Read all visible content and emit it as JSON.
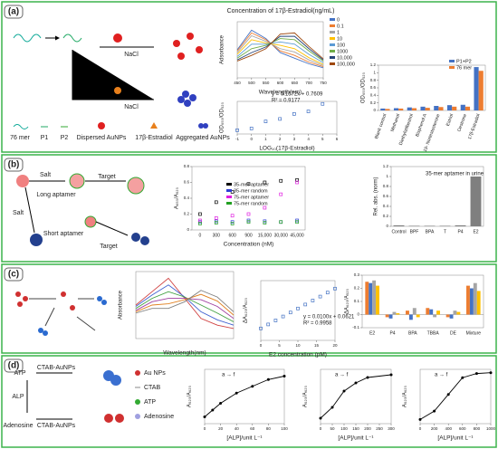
{
  "panels": [
    {
      "label": "(a)",
      "texts": [
        "NaCl",
        "NaCl",
        "76 mer",
        "P1",
        "P2",
        "Dispersed AuNPs",
        "17β-Estradiol",
        "Aggregated AuNPs"
      ]
    },
    {
      "label": "(b)",
      "texts": [
        "Salt",
        "Long aptamer",
        "Target",
        "Salt",
        "Short aptamer",
        "Target"
      ]
    },
    {
      "label": "(c)",
      "texts": []
    },
    {
      "label": "(d)",
      "texts": [
        "ATP",
        "ALP",
        "Adenosine",
        "CTAB-AuNPs",
        "CTAB-AuNPs",
        "Au NPs",
        "CTAB",
        "ATP",
        "Adenosine"
      ]
    }
  ],
  "chart_data": [
    {
      "type": "line",
      "title": "Concentration of 17β-Estradiol(ng/mL)",
      "xlabel": "Wavelength(nm)",
      "ylabel": "Adsorbance",
      "x": [
        450,
        500,
        550,
        600,
        650,
        700,
        750
      ],
      "xlim": [
        450,
        750
      ],
      "ylim": [
        0,
        1
      ],
      "xticks": [
        450,
        500,
        550,
        600,
        650,
        700,
        750
      ],
      "series": [
        {
          "name": "0",
          "color": "#4472c4",
          "values": [
            0.5,
            0.85,
            0.7,
            0.45,
            0.35,
            0.25,
            0.18
          ]
        },
        {
          "name": "0.1",
          "color": "#ed7d31",
          "values": [
            0.48,
            0.8,
            0.68,
            0.48,
            0.4,
            0.28,
            0.2
          ]
        },
        {
          "name": "1",
          "color": "#a5a5a5",
          "values": [
            0.45,
            0.75,
            0.65,
            0.52,
            0.46,
            0.32,
            0.22
          ]
        },
        {
          "name": "10",
          "color": "#ffc000",
          "values": [
            0.42,
            0.68,
            0.62,
            0.58,
            0.52,
            0.36,
            0.24
          ]
        },
        {
          "name": "100",
          "color": "#5b9bd5",
          "values": [
            0.38,
            0.6,
            0.6,
            0.64,
            0.6,
            0.42,
            0.27
          ]
        },
        {
          "name": "1000",
          "color": "#70ad47",
          "values": [
            0.35,
            0.52,
            0.58,
            0.7,
            0.68,
            0.48,
            0.3
          ]
        },
        {
          "name": "10,000",
          "color": "#264478",
          "values": [
            0.32,
            0.45,
            0.55,
            0.74,
            0.74,
            0.52,
            0.32
          ]
        },
        {
          "name": "100,000",
          "color": "#9e480e",
          "values": [
            0.3,
            0.4,
            0.52,
            0.78,
            0.8,
            0.56,
            0.34
          ]
        }
      ]
    },
    {
      "type": "scatter",
      "xlabel": "LOG₁₀(17β-Estradiol)",
      "ylabel": "OD₆₅₀/OD₅₂₀",
      "annotations": [
        "y = 0.1672x + 0.7609",
        "R² = 0.9177"
      ],
      "x": [
        -1,
        0,
        1,
        2,
        3,
        4,
        5
      ],
      "xlim": [
        -1,
        6
      ],
      "ylim": [
        0.5,
        1.8
      ],
      "xticks": [
        -1,
        0,
        1,
        2,
        3,
        4,
        5,
        6
      ],
      "series": [
        {
          "color": "#4472c4",
          "values": [
            0.65,
            0.72,
            1.0,
            1.1,
            1.3,
            1.4,
            1.7
          ]
        }
      ]
    },
    {
      "type": "bar",
      "ylabel": "OD₆₅₀/OD₅₂₀",
      "categories": [
        "Blank control",
        "Methanol",
        "Diethylstilbestrol",
        "Bisphenol A",
        "19- Nortestosterone",
        "Estriol",
        "Oestrone",
        "17β-Estradiol"
      ],
      "ylim": [
        0,
        1.2
      ],
      "yticks": [
        0,
        0.2,
        0.4,
        0.6,
        0.8,
        1,
        1.2
      ],
      "series": [
        {
          "name": "P1+P2",
          "color": "#4472c4",
          "values": [
            0.05,
            0.06,
            0.08,
            0.1,
            0.12,
            0.14,
            0.15,
            1.15
          ]
        },
        {
          "name": "76 mer",
          "color": "#ed7d31",
          "values": [
            0.04,
            0.05,
            0.06,
            0.07,
            0.09,
            0.1,
            0.1,
            1.05
          ]
        }
      ]
    },
    {
      "type": "scatter",
      "xlabel": "Concentration (nM)",
      "ylabel": "A₆₅₀/A₅₂₀",
      "categories": [
        "0",
        "300",
        "600",
        "900",
        "15,000",
        "30,000",
        "45,000"
      ],
      "ylim": [
        0,
        0.8
      ],
      "yticks": [
        0,
        0.2,
        0.4,
        0.6,
        0.8
      ],
      "series": [
        {
          "name": "35-mer aptamer",
          "color": "#000000",
          "values": [
            0.2,
            0.35,
            0.48,
            0.58,
            0.6,
            0.62,
            0.63
          ]
        },
        {
          "name": "35-mer random",
          "color": "#2e3fd6",
          "values": [
            0.1,
            0.11,
            0.1,
            0.12,
            0.11,
            0.1,
            0.12
          ]
        },
        {
          "name": "75-mer aptamer",
          "color": "#e020e0",
          "values": [
            0.12,
            0.15,
            0.18,
            0.2,
            0.28,
            0.45,
            0.6
          ]
        },
        {
          "name": "75-mer random",
          "color": "#22a022",
          "values": [
            0.08,
            0.09,
            0.08,
            0.1,
            0.09,
            0.1,
            0.1
          ]
        }
      ]
    },
    {
      "type": "bar",
      "ylabel": "Rel. abs. (norm)",
      "annotations": [
        "35-mer aptamer in urine"
      ],
      "categories": [
        "Control",
        "BPF",
        "BPA",
        "T",
        "P4",
        "E2"
      ],
      "ylim": [
        0,
        1.2
      ],
      "yticks": [
        0,
        0.2,
        0.4,
        0.6,
        0.8,
        1,
        1.2
      ],
      "series": [
        {
          "color": "#7f7f7f",
          "values": [
            0.02,
            0.01,
            0.01,
            0.01,
            0.02,
            1.0
          ]
        }
      ]
    },
    {
      "type": "line",
      "xlabel": "Wavelength(nm)",
      "ylabel": "Absorbance",
      "x": [
        400,
        450,
        500,
        550,
        600,
        650,
        700
      ],
      "xlim": [
        400,
        700
      ],
      "ylim": [
        0,
        1
      ],
      "series": [
        {
          "color": "#d04040",
          "values": [
            0.5,
            0.7,
            0.9,
            0.6,
            0.3,
            0.2,
            0.15
          ]
        },
        {
          "color": "#4060d0",
          "values": [
            0.48,
            0.65,
            0.8,
            0.62,
            0.4,
            0.28,
            0.2
          ]
        },
        {
          "color": "#40a040",
          "values": [
            0.45,
            0.6,
            0.7,
            0.62,
            0.5,
            0.38,
            0.25
          ]
        },
        {
          "color": "#a040a0",
          "values": [
            0.42,
            0.55,
            0.6,
            0.6,
            0.58,
            0.48,
            0.3
          ]
        },
        {
          "color": "#e08020",
          "values": [
            0.4,
            0.5,
            0.52,
            0.58,
            0.66,
            0.56,
            0.35
          ]
        },
        {
          "color": "#808080",
          "values": [
            0.38,
            0.45,
            0.45,
            0.55,
            0.72,
            0.62,
            0.4
          ]
        }
      ]
    },
    {
      "type": "scatter",
      "xlabel": "E2 concentration (pM)",
      "ylabel": "ΔA₆₂₀/A₅₂₀",
      "annotations": [
        "y = 0.0100x + 0.0621",
        "R² = 0.9958"
      ],
      "x": [
        0,
        2,
        4,
        6,
        8,
        10,
        12,
        14,
        16,
        18,
        20
      ],
      "xlim": [
        0,
        20
      ],
      "ylim": [
        0,
        0.3
      ],
      "xticks": [
        0,
        5,
        10,
        15,
        20
      ],
      "series": [
        {
          "color": "#4472c4",
          "values": [
            0.06,
            0.08,
            0.1,
            0.12,
            0.14,
            0.16,
            0.18,
            0.2,
            0.22,
            0.24,
            0.26
          ]
        }
      ]
    },
    {
      "type": "bar",
      "ylabel": "ΔA₆₂₀/A₅₂₀",
      "categories": [
        "E2",
        "P4",
        "BPA",
        "TBBA",
        "DE",
        "Mixture"
      ],
      "ylim": [
        -0.1,
        0.3
      ],
      "yticks": [
        -0.1,
        0,
        0.1,
        0.2,
        0.3
      ],
      "series": [
        {
          "color": "#ed7d31",
          "values": [
            0.25,
            -0.02,
            0.03,
            0.05,
            -0.02,
            0.22
          ]
        },
        {
          "color": "#4472c4",
          "values": [
            0.24,
            -0.03,
            -0.04,
            0.04,
            -0.03,
            0.2
          ]
        },
        {
          "color": "#a5a5a5",
          "values": [
            0.26,
            0.02,
            0.05,
            -0.02,
            0.03,
            0.24
          ]
        },
        {
          "color": "#ffc000",
          "values": [
            0.22,
            0.01,
            -0.02,
            0.03,
            0.02,
            0.18
          ]
        }
      ]
    },
    {
      "type": "line",
      "xlabel": "[ALP]/unit L⁻¹",
      "ylabel": "A₅₂₀/A₆₂₀",
      "annotations": [
        "a → f"
      ],
      "x": [
        0,
        10,
        20,
        40,
        60,
        80,
        100
      ],
      "xlim": [
        0,
        100
      ],
      "ylim": [
        0.4,
        2
      ],
      "xticks": [
        0,
        20,
        40,
        60,
        80,
        100
      ],
      "series": [
        {
          "color": "#000000",
          "values": [
            0.6,
            0.8,
            1.0,
            1.3,
            1.5,
            1.7,
            1.8
          ]
        }
      ]
    },
    {
      "type": "line",
      "xlabel": "[ALP]/unit L⁻¹",
      "ylabel": "A₅₂₀/A₆₂₀",
      "annotations": [
        "a → f"
      ],
      "x": [
        0,
        50,
        100,
        150,
        200,
        300
      ],
      "xlim": [
        0,
        300
      ],
      "ylim": [
        0.4,
        1.4
      ],
      "xticks": [
        0,
        50,
        100,
        150,
        200,
        250,
        300
      ],
      "series": [
        {
          "color": "#000000",
          "values": [
            0.5,
            0.7,
            1.0,
            1.15,
            1.25,
            1.3
          ]
        }
      ]
    },
    {
      "type": "line",
      "xlabel": "[ALP]/unit L⁻¹",
      "ylabel": "A₅₂₀/A₆₂₀",
      "annotations": [
        "a → f"
      ],
      "x": [
        0,
        200,
        400,
        600,
        800,
        1000
      ],
      "xlim": [
        0,
        1000
      ],
      "ylim": [
        0.3,
        1.6
      ],
      "xticks": [
        0,
        200,
        400,
        600,
        800,
        1000
      ],
      "series": [
        {
          "color": "#000000",
          "values": [
            0.4,
            0.6,
            1.0,
            1.4,
            1.5,
            1.52
          ]
        }
      ]
    }
  ]
}
